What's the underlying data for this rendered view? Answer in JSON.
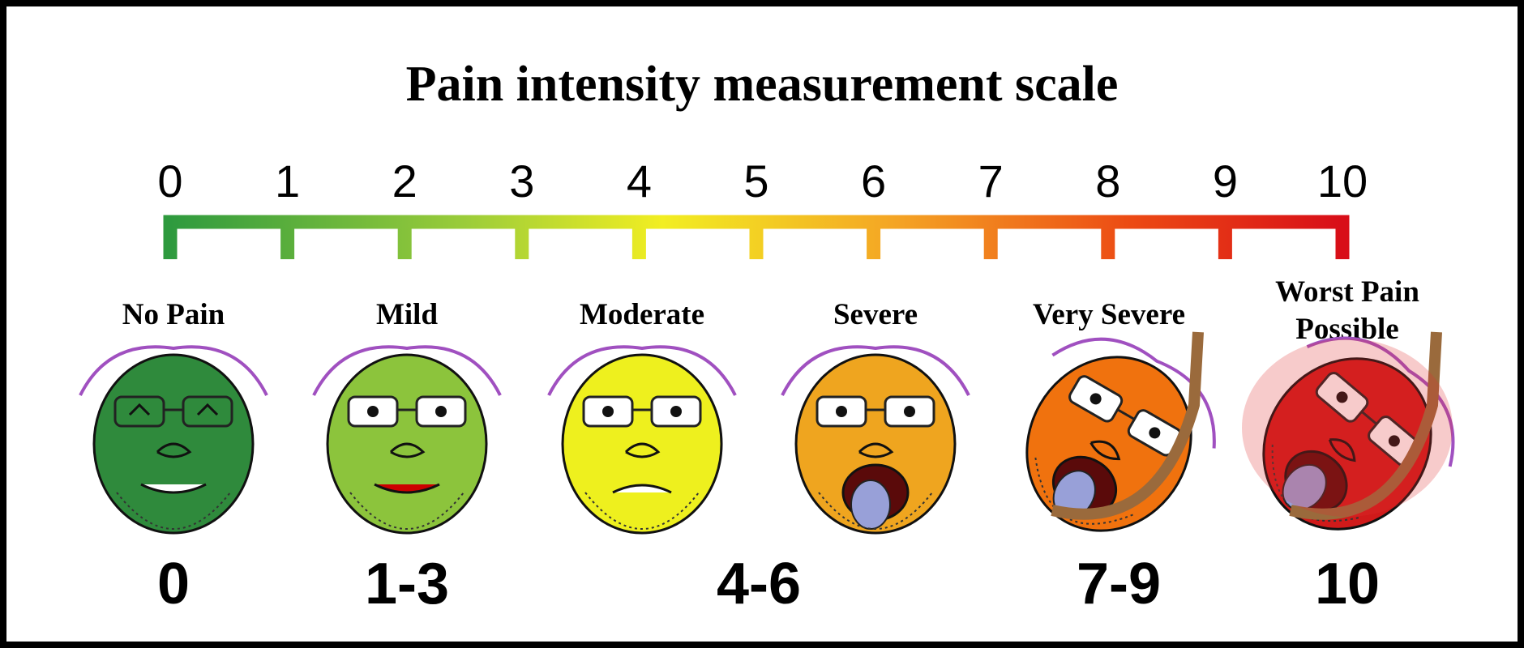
{
  "title": "Pain intensity measurement scale",
  "scale": {
    "ticks": [
      "0",
      "1",
      "2",
      "3",
      "4",
      "5",
      "6",
      "7",
      "8",
      "9",
      "10"
    ]
  },
  "faces": [
    {
      "label": [
        "No Pain"
      ],
      "color": "#2f8a3c"
    },
    {
      "label": [
        "Mild"
      ],
      "color": "#8cc43c"
    },
    {
      "label": [
        "Moderate"
      ],
      "color": "#eef01e"
    },
    {
      "label": [
        "Severe"
      ],
      "color": "#efa51f"
    },
    {
      "label": [
        "Very Severe"
      ],
      "color": "#f0720e"
    },
    {
      "label": [
        "Worst Pain",
        "Possible"
      ],
      "color": "#d01a1a"
    }
  ],
  "ranges": [
    "0",
    "1-3",
    "4-6",
    "7-9",
    "10"
  ]
}
